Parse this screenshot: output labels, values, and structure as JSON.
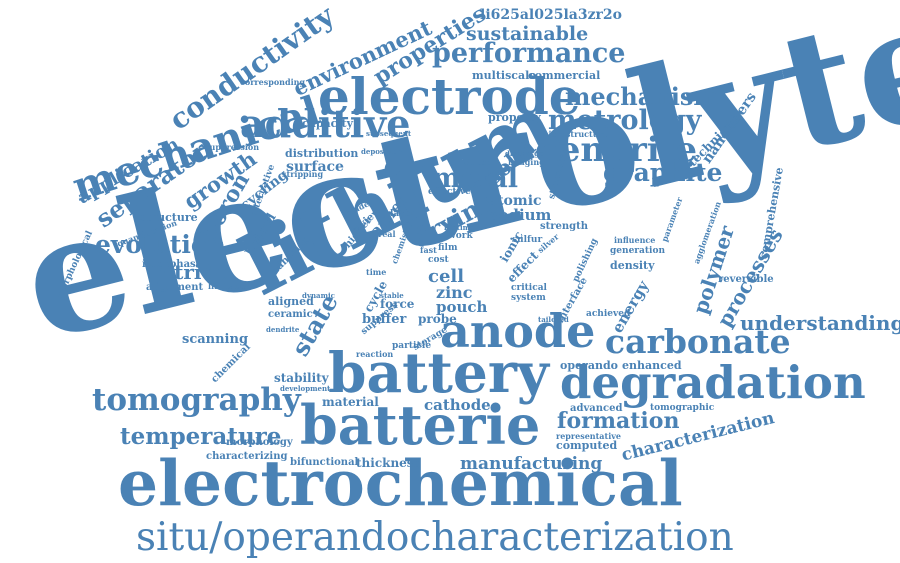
{
  "word_color": "#4a82b5",
  "background": "#ffffff",
  "words": [
    "electrolyte",
    "electrochemical",
    "situ/operandocharacterization",
    "lithium",
    "battery",
    "batterie",
    "degradation",
    "electrode",
    "anode",
    "carbonate",
    "dendrite",
    "additive",
    "mechanical",
    "tomography",
    "metrology",
    "performance",
    "mechanism",
    "graphite",
    "conductivity",
    "environment",
    "properties",
    "sustainable",
    "li625al025la3zr2o",
    "evolution",
    "nitride",
    "separator",
    "application",
    "growth",
    "boron",
    "temperature",
    "formation",
    "characterization",
    "manufacturing",
    "understanding",
    "processes",
    "polymer",
    "metal",
    "solid",
    "drying",
    "sodium",
    "atomic",
    "cell",
    "zinc",
    "pouch",
    "state",
    "cathode",
    "scanning",
    "thickness",
    "stability",
    "energy",
    "operando",
    "enhanced",
    "nanofibers",
    "technique",
    "comprehensive",
    "surface",
    "cycling",
    "garnet",
    "buffer",
    "force",
    "probe",
    "commercial",
    "multiscale",
    "property",
    "capacity",
    "distribution",
    "alternative",
    "hybrid",
    "adhesion",
    "aligned",
    "ceramic",
    "interphase",
    "alignment",
    "structure",
    "chemical",
    "morphology",
    "characterizing",
    "bifunctional",
    "material",
    "computed",
    "advanced",
    "tomographic",
    "representative",
    "reversible",
    "density",
    "generation",
    "influence",
    "achieved",
    "tailored",
    "polishing",
    "interface",
    "system",
    "critical",
    "effect",
    "ionic",
    "cost",
    "review",
    "higher",
    "binder",
    "effective",
    "work",
    "time",
    "real",
    "stable",
    "chemistry",
    "particle",
    "storage",
    "reaction",
    "suppress",
    "limitation",
    "suppression",
    "corresponding",
    "quantification",
    "morphological",
    "development",
    "sulfur",
    "strength",
    "silver",
    "lifetime",
    "microstructure",
    "imaging",
    "discharge",
    "induced",
    "deposition",
    "stripping",
    "subsequent",
    "structural",
    "agglomeration",
    "parameter",
    "layer",
    "cycle",
    "film",
    "fast",
    "dynamic",
    "dendrite"
  ]
}
